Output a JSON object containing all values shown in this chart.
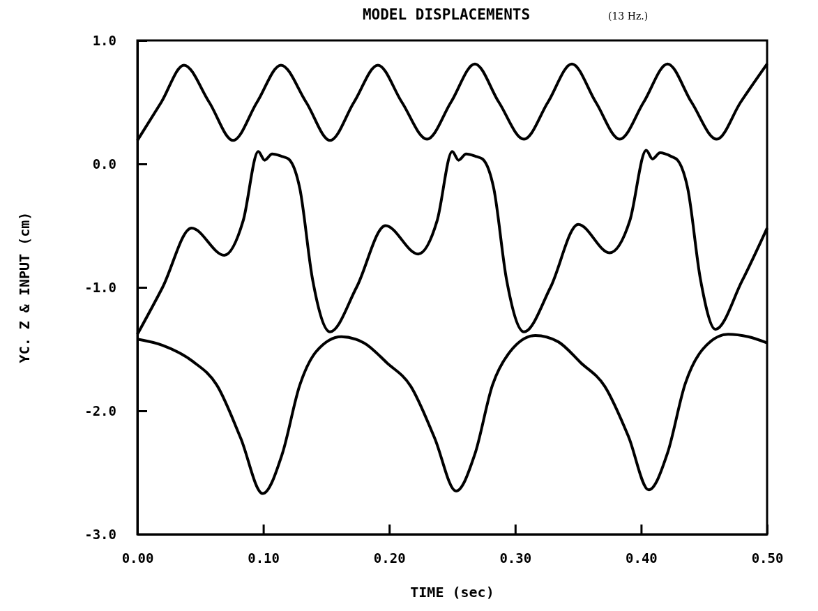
{
  "chart_data": {
    "type": "line",
    "title": "MODEL DISPLACEMENTS",
    "subtitle": "(13 Hz.)",
    "xlabel": "TIME (sec)",
    "ylabel": "YC. Z & INPUT (cm)",
    "xlim": [
      0,
      0.5
    ],
    "ylim": [
      -3.0,
      1.0
    ],
    "xticks": [
      {
        "value": 0,
        "label": "0.00"
      },
      {
        "value": 0.1,
        "label": "0.10"
      },
      {
        "value": 0.2,
        "label": "0.20"
      },
      {
        "value": 0.3,
        "label": "0.30"
      },
      {
        "value": 0.4,
        "label": "0.40"
      },
      {
        "value": 0.5,
        "label": "0.50"
      }
    ],
    "yticks": [
      {
        "value": 1,
        "label": "1.0"
      },
      {
        "value": 0,
        "label": "0.0"
      },
      {
        "value": -1,
        "label": "-1.0"
      },
      {
        "value": -2,
        "label": "-2.0"
      },
      {
        "value": -3,
        "label": "-3.0"
      }
    ],
    "grid": false,
    "series": [
      {
        "color": "#000000",
        "x": [
          0,
          0.019,
          0.037,
          0.057,
          0.076,
          0.095,
          0.114,
          0.134,
          0.153,
          0.172,
          0.191,
          0.21,
          0.23,
          0.249,
          0.268,
          0.287,
          0.307,
          0.326,
          0.345,
          0.364,
          0.383,
          0.402,
          0.421,
          0.44,
          0.46,
          0.479,
          0.5
        ],
        "values": [
          0.19,
          0.5,
          0.8,
          0.5,
          0.19,
          0.5,
          0.8,
          0.5,
          0.19,
          0.5,
          0.8,
          0.5,
          0.2,
          0.5,
          0.81,
          0.5,
          0.2,
          0.5,
          0.81,
          0.5,
          0.2,
          0.5,
          0.81,
          0.5,
          0.2,
          0.5,
          0.81
        ]
      },
      {
        "color": "#000000",
        "x": [
          0,
          0.02,
          0.043,
          0.069,
          0.084,
          0.096,
          0.101,
          0.107,
          0.115,
          0.12,
          0.129,
          0.139,
          0.153,
          0.174,
          0.197,
          0.223,
          0.238,
          0.25,
          0.255,
          0.261,
          0.269,
          0.274,
          0.283,
          0.293,
          0.307,
          0.328,
          0.35,
          0.375,
          0.391,
          0.404,
          0.409,
          0.415,
          0.424,
          0.429,
          0.437,
          0.447,
          0.459,
          0.48,
          0.5
        ],
        "values": [
          -1.38,
          -1.0,
          -0.52,
          -0.74,
          -0.46,
          0.1,
          0.03,
          0.08,
          0.06,
          0.04,
          -0.2,
          -0.93,
          -1.36,
          -1.0,
          -0.5,
          -0.73,
          -0.46,
          0.1,
          0.03,
          0.08,
          0.06,
          0.04,
          -0.2,
          -0.93,
          -1.36,
          -1.0,
          -0.49,
          -0.72,
          -0.46,
          0.11,
          0.04,
          0.09,
          0.06,
          0.03,
          -0.2,
          -0.93,
          -1.34,
          -0.95,
          -0.52
        ]
      },
      {
        "color": "#000000",
        "x": [
          0,
          0.02,
          0.044,
          0.063,
          0.082,
          0.0995,
          0.115,
          0.129,
          0.142,
          0.162,
          0.18,
          0.198,
          0.217,
          0.236,
          0.253,
          0.268,
          0.282,
          0.296,
          0.316,
          0.334,
          0.352,
          0.371,
          0.39,
          0.406,
          0.421,
          0.435,
          0.449,
          0.469,
          0.485,
          0.5
        ],
        "values": [
          -1.42,
          -1.47,
          -1.6,
          -1.79,
          -2.22,
          -2.67,
          -2.35,
          -1.79,
          -1.52,
          -1.4,
          -1.45,
          -1.61,
          -1.8,
          -2.22,
          -2.65,
          -2.35,
          -1.79,
          -1.52,
          -1.39,
          -1.44,
          -1.61,
          -1.8,
          -2.21,
          -2.64,
          -2.34,
          -1.78,
          -1.5,
          -1.38,
          -1.4,
          -1.45
        ]
      }
    ]
  }
}
